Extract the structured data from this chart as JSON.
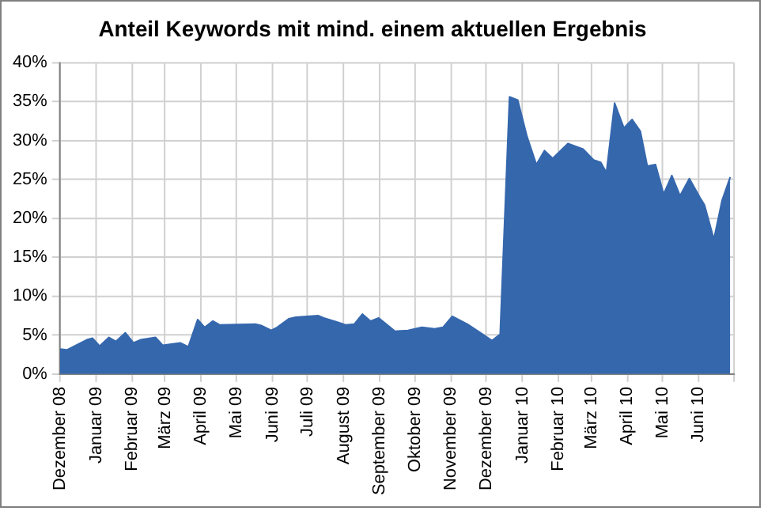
{
  "chart_data": {
    "type": "area",
    "title": "Anteil Keywords mit mind. einem aktuellen Ergebnis",
    "x": [
      "2008-12-01",
      "2008-12-07",
      "2008-12-24",
      "2008-12-29",
      "2009-01-04",
      "2009-01-12",
      "2009-01-18",
      "2009-01-26",
      "2009-02-02",
      "2009-02-08",
      "2009-02-21",
      "2009-02-27",
      "2009-03-14",
      "2009-03-21",
      "2009-03-29",
      "2009-04-04",
      "2009-04-11",
      "2009-04-17",
      "2009-05-18",
      "2009-05-23",
      "2009-05-31",
      "2009-06-05",
      "2009-06-15",
      "2009-06-21",
      "2009-07-10",
      "2009-07-15",
      "2009-07-26",
      "2009-08-03",
      "2009-08-10",
      "2009-08-17",
      "2009-08-24",
      "2009-08-31",
      "2009-09-14",
      "2009-09-25",
      "2009-10-07",
      "2009-10-18",
      "2009-10-25",
      "2009-11-02",
      "2009-11-15",
      "2009-11-27",
      "2009-12-06",
      "2009-12-13",
      "2009-12-21",
      "2009-12-28",
      "2010-01-05",
      "2010-01-13",
      "2010-01-20",
      "2010-01-27",
      "2010-02-09",
      "2010-02-22",
      "2010-03-03",
      "2010-03-09",
      "2010-03-14",
      "2010-03-21",
      "2010-03-29",
      "2010-04-05",
      "2010-04-12",
      "2010-04-18",
      "2010-04-25",
      "2010-05-02",
      "2010-05-09",
      "2010-05-16",
      "2010-05-24",
      "2010-06-02",
      "2010-06-06",
      "2010-06-14",
      "2010-06-21",
      "2010-06-28"
    ],
    "series": [
      {
        "color": "#3567ad",
        "values": [
          3.2,
          3.1,
          4.4,
          4.6,
          3.6,
          4.7,
          4.2,
          5.3,
          4.0,
          4.4,
          4.7,
          3.7,
          4.0,
          3.5,
          7.0,
          6.0,
          6.8,
          6.3,
          6.4,
          6.2,
          5.6,
          6.0,
          7.1,
          7.3,
          7.5,
          7.2,
          6.7,
          6.3,
          6.4,
          7.7,
          6.8,
          7.2,
          5.5,
          5.6,
          6.0,
          5.8,
          6.0,
          7.4,
          6.4,
          5.2,
          4.3,
          5.1,
          35.6,
          35.2,
          30.5,
          26.9,
          28.7,
          27.7,
          29.6,
          28.9,
          27.5,
          27.2,
          25.9,
          34.8,
          31.6,
          32.7,
          31.2,
          26.7,
          26.9,
          23.1,
          25.5,
          22.9,
          25.1,
          22.7,
          21.7,
          17.3,
          22.3,
          25.3
        ]
      }
    ],
    "xlim": [
      "2008-12-01",
      "2010-07-01"
    ],
    "xticks": [
      {
        "value": "2008-12",
        "label": "Dezember 08"
      },
      {
        "value": "2009-01",
        "label": "Januar 09"
      },
      {
        "value": "2009-02",
        "label": "Februar 09"
      },
      {
        "value": "2009-03",
        "label": "März 09"
      },
      {
        "value": "2009-04",
        "label": "April 09"
      },
      {
        "value": "2009-05",
        "label": "Mai 09"
      },
      {
        "value": "2009-06",
        "label": "Juni 09"
      },
      {
        "value": "2009-07",
        "label": "Juli 09"
      },
      {
        "value": "2009-08",
        "label": "August 09"
      },
      {
        "value": "2009-09",
        "label": "September 09"
      },
      {
        "value": "2009-10",
        "label": "Oktober 09"
      },
      {
        "value": "2009-11",
        "label": "November 09"
      },
      {
        "value": "2009-12",
        "label": "Dezember 09"
      },
      {
        "value": "2010-01",
        "label": "Januar 10"
      },
      {
        "value": "2010-02",
        "label": "Februar 10"
      },
      {
        "value": "2010-03",
        "label": "März 10"
      },
      {
        "value": "2010-04",
        "label": "April 10"
      },
      {
        "value": "2010-05",
        "label": "Mai 10"
      },
      {
        "value": "2010-06",
        "label": "Juni 10"
      },
      {
        "value": "2010-07",
        "label": null
      }
    ],
    "ylim": [
      0,
      40
    ],
    "yticks": [
      {
        "value": 0,
        "label": "0%"
      },
      {
        "value": 5,
        "label": "5%"
      },
      {
        "value": 10,
        "label": "10%"
      },
      {
        "value": 15,
        "label": "15%"
      },
      {
        "value": 20,
        "label": "20%"
      },
      {
        "value": 25,
        "label": "25%"
      },
      {
        "value": 30,
        "label": "30%"
      },
      {
        "value": 35,
        "label": "35%"
      },
      {
        "value": 40,
        "label": "40%"
      }
    ],
    "grid": true,
    "legend": false
  }
}
